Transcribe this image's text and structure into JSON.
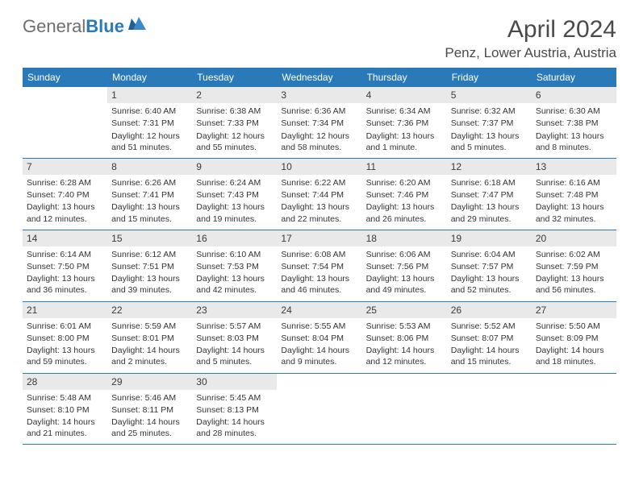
{
  "logo": {
    "word1": "General",
    "word2": "Blue"
  },
  "title": "April 2024",
  "location": "Penz, Lower Austria, Austria",
  "colors": {
    "header_bg": "#2a7ab9",
    "header_text": "#ffffff",
    "daynum_bg": "#e9e9e9",
    "border": "#2a7ab9",
    "body_text": "#333333",
    "page_bg": "#ffffff"
  },
  "typography": {
    "title_fontsize": 30,
    "location_fontsize": 17,
    "dayheader_fontsize": 12,
    "cell_fontsize": 10.5
  },
  "layout": {
    "columns": 7,
    "rows": 5,
    "start_offset": 1
  },
  "day_headers": [
    "Sunday",
    "Monday",
    "Tuesday",
    "Wednesday",
    "Thursday",
    "Friday",
    "Saturday"
  ],
  "days": [
    {
      "n": "1",
      "sunrise": "Sunrise: 6:40 AM",
      "sunset": "Sunset: 7:31 PM",
      "day": "Daylight: 12 hours and 51 minutes."
    },
    {
      "n": "2",
      "sunrise": "Sunrise: 6:38 AM",
      "sunset": "Sunset: 7:33 PM",
      "day": "Daylight: 12 hours and 55 minutes."
    },
    {
      "n": "3",
      "sunrise": "Sunrise: 6:36 AM",
      "sunset": "Sunset: 7:34 PM",
      "day": "Daylight: 12 hours and 58 minutes."
    },
    {
      "n": "4",
      "sunrise": "Sunrise: 6:34 AM",
      "sunset": "Sunset: 7:36 PM",
      "day": "Daylight: 13 hours and 1 minute."
    },
    {
      "n": "5",
      "sunrise": "Sunrise: 6:32 AM",
      "sunset": "Sunset: 7:37 PM",
      "day": "Daylight: 13 hours and 5 minutes."
    },
    {
      "n": "6",
      "sunrise": "Sunrise: 6:30 AM",
      "sunset": "Sunset: 7:38 PM",
      "day": "Daylight: 13 hours and 8 minutes."
    },
    {
      "n": "7",
      "sunrise": "Sunrise: 6:28 AM",
      "sunset": "Sunset: 7:40 PM",
      "day": "Daylight: 13 hours and 12 minutes."
    },
    {
      "n": "8",
      "sunrise": "Sunrise: 6:26 AM",
      "sunset": "Sunset: 7:41 PM",
      "day": "Daylight: 13 hours and 15 minutes."
    },
    {
      "n": "9",
      "sunrise": "Sunrise: 6:24 AM",
      "sunset": "Sunset: 7:43 PM",
      "day": "Daylight: 13 hours and 19 minutes."
    },
    {
      "n": "10",
      "sunrise": "Sunrise: 6:22 AM",
      "sunset": "Sunset: 7:44 PM",
      "day": "Daylight: 13 hours and 22 minutes."
    },
    {
      "n": "11",
      "sunrise": "Sunrise: 6:20 AM",
      "sunset": "Sunset: 7:46 PM",
      "day": "Daylight: 13 hours and 26 minutes."
    },
    {
      "n": "12",
      "sunrise": "Sunrise: 6:18 AM",
      "sunset": "Sunset: 7:47 PM",
      "day": "Daylight: 13 hours and 29 minutes."
    },
    {
      "n": "13",
      "sunrise": "Sunrise: 6:16 AM",
      "sunset": "Sunset: 7:48 PM",
      "day": "Daylight: 13 hours and 32 minutes."
    },
    {
      "n": "14",
      "sunrise": "Sunrise: 6:14 AM",
      "sunset": "Sunset: 7:50 PM",
      "day": "Daylight: 13 hours and 36 minutes."
    },
    {
      "n": "15",
      "sunrise": "Sunrise: 6:12 AM",
      "sunset": "Sunset: 7:51 PM",
      "day": "Daylight: 13 hours and 39 minutes."
    },
    {
      "n": "16",
      "sunrise": "Sunrise: 6:10 AM",
      "sunset": "Sunset: 7:53 PM",
      "day": "Daylight: 13 hours and 42 minutes."
    },
    {
      "n": "17",
      "sunrise": "Sunrise: 6:08 AM",
      "sunset": "Sunset: 7:54 PM",
      "day": "Daylight: 13 hours and 46 minutes."
    },
    {
      "n": "18",
      "sunrise": "Sunrise: 6:06 AM",
      "sunset": "Sunset: 7:56 PM",
      "day": "Daylight: 13 hours and 49 minutes."
    },
    {
      "n": "19",
      "sunrise": "Sunrise: 6:04 AM",
      "sunset": "Sunset: 7:57 PM",
      "day": "Daylight: 13 hours and 52 minutes."
    },
    {
      "n": "20",
      "sunrise": "Sunrise: 6:02 AM",
      "sunset": "Sunset: 7:59 PM",
      "day": "Daylight: 13 hours and 56 minutes."
    },
    {
      "n": "21",
      "sunrise": "Sunrise: 6:01 AM",
      "sunset": "Sunset: 8:00 PM",
      "day": "Daylight: 13 hours and 59 minutes."
    },
    {
      "n": "22",
      "sunrise": "Sunrise: 5:59 AM",
      "sunset": "Sunset: 8:01 PM",
      "day": "Daylight: 14 hours and 2 minutes."
    },
    {
      "n": "23",
      "sunrise": "Sunrise: 5:57 AM",
      "sunset": "Sunset: 8:03 PM",
      "day": "Daylight: 14 hours and 5 minutes."
    },
    {
      "n": "24",
      "sunrise": "Sunrise: 5:55 AM",
      "sunset": "Sunset: 8:04 PM",
      "day": "Daylight: 14 hours and 9 minutes."
    },
    {
      "n": "25",
      "sunrise": "Sunrise: 5:53 AM",
      "sunset": "Sunset: 8:06 PM",
      "day": "Daylight: 14 hours and 12 minutes."
    },
    {
      "n": "26",
      "sunrise": "Sunrise: 5:52 AM",
      "sunset": "Sunset: 8:07 PM",
      "day": "Daylight: 14 hours and 15 minutes."
    },
    {
      "n": "27",
      "sunrise": "Sunrise: 5:50 AM",
      "sunset": "Sunset: 8:09 PM",
      "day": "Daylight: 14 hours and 18 minutes."
    },
    {
      "n": "28",
      "sunrise": "Sunrise: 5:48 AM",
      "sunset": "Sunset: 8:10 PM",
      "day": "Daylight: 14 hours and 21 minutes."
    },
    {
      "n": "29",
      "sunrise": "Sunrise: 5:46 AM",
      "sunset": "Sunset: 8:11 PM",
      "day": "Daylight: 14 hours and 25 minutes."
    },
    {
      "n": "30",
      "sunrise": "Sunrise: 5:45 AM",
      "sunset": "Sunset: 8:13 PM",
      "day": "Daylight: 14 hours and 28 minutes."
    }
  ]
}
